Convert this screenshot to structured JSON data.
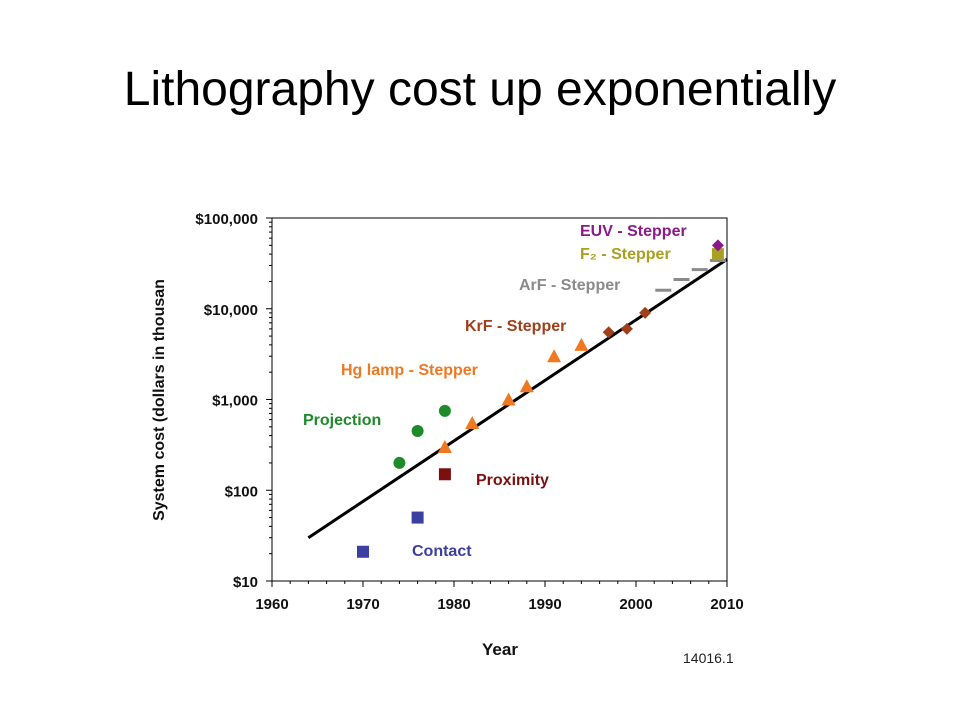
{
  "slide": {
    "title": "Lithography cost up exponentially"
  },
  "chart_data": {
    "type": "scatter",
    "ylabel": "System cost (dollars in thousan",
    "xlabel": "Year",
    "figure_id": "14016.1",
    "x_ticks": [
      "1960",
      "1970",
      "1980",
      "1990",
      "2000",
      "2010"
    ],
    "y_ticks": [
      "$10",
      "$100",
      "$1,000",
      "$10,000",
      "$100,000"
    ],
    "xlim": [
      1960,
      2010
    ],
    "ylim": [
      10,
      100000
    ],
    "y_scale": "log",
    "grid": false,
    "trend_line": {
      "x": [
        1964,
        2010
      ],
      "y": [
        30,
        35000
      ]
    },
    "series": [
      {
        "name": "Contact",
        "marker": "square",
        "color": "#3a3fa0",
        "points": [
          {
            "x": 1970,
            "y": 21
          },
          {
            "x": 1976,
            "y": 50
          }
        ]
      },
      {
        "name": "Proximity",
        "marker": "square",
        "color": "#7a1010",
        "points": [
          {
            "x": 1979,
            "y": 150
          }
        ]
      },
      {
        "name": "Projection",
        "marker": "circle",
        "color": "#1e8a2a",
        "points": [
          {
            "x": 1974,
            "y": 200
          },
          {
            "x": 1976,
            "y": 450
          },
          {
            "x": 1979,
            "y": 750
          }
        ]
      },
      {
        "name": "Hg lamp - Stepper",
        "marker": "triangle",
        "color": "#f07820",
        "points": [
          {
            "x": 1979,
            "y": 300
          },
          {
            "x": 1982,
            "y": 550
          },
          {
            "x": 1986,
            "y": 1000
          },
          {
            "x": 1988,
            "y": 1400
          },
          {
            "x": 1991,
            "y": 3000
          },
          {
            "x": 1994,
            "y": 4000
          }
        ]
      },
      {
        "name": "KrF - Stepper",
        "marker": "diamond",
        "color": "#a0401a",
        "points": [
          {
            "x": 1997,
            "y": 5500
          },
          {
            "x": 1999,
            "y": 6000
          },
          {
            "x": 2001,
            "y": 9000
          }
        ]
      },
      {
        "name": "ArF - Stepper",
        "marker": "dash",
        "color": "#8a8a8a",
        "points": [
          {
            "x": 2003,
            "y": 16000
          },
          {
            "x": 2005,
            "y": 21000
          },
          {
            "x": 2007,
            "y": 27000
          },
          {
            "x": 2009,
            "y": 34000
          }
        ]
      },
      {
        "name": "F₂ - Stepper",
        "marker": "square",
        "color": "#a8a020",
        "points": [
          {
            "x": 2009,
            "y": 40000
          }
        ]
      },
      {
        "name": "EUV - Stepper",
        "marker": "diamond",
        "color": "#8a1a8a",
        "points": [
          {
            "x": 2009,
            "y": 50000
          }
        ]
      }
    ]
  }
}
